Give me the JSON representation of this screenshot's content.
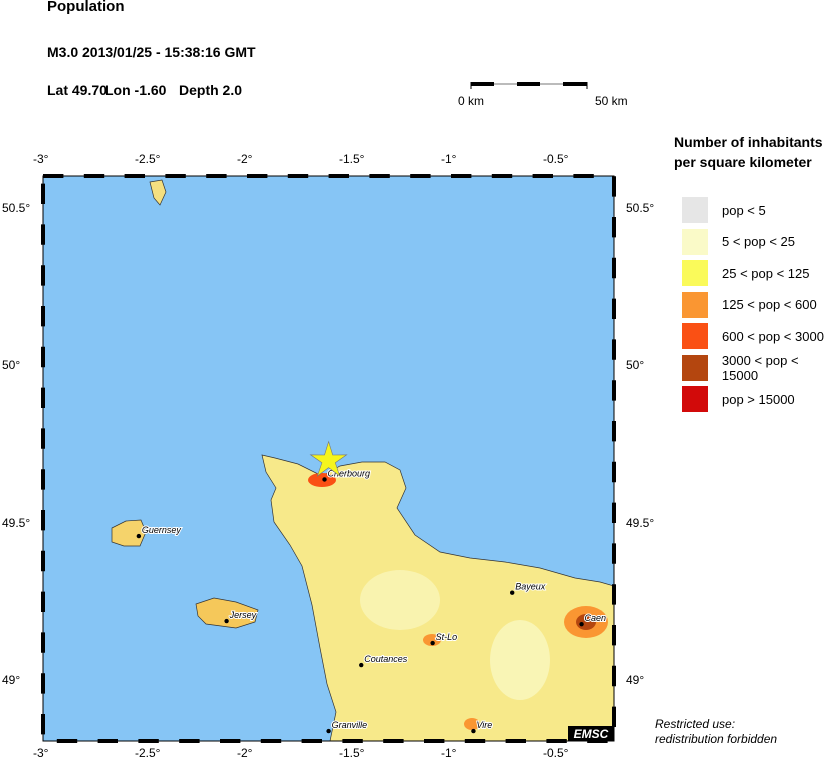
{
  "title": "Population",
  "event": {
    "line1": "M3.0  2013/01/25 - 15:38:16 GMT",
    "lat_label": "Lat 49.70",
    "lon_label": "Lon  -1.60",
    "depth_label": "Depth  2.0"
  },
  "scale_bar": {
    "start": "0 km",
    "end": "50 km"
  },
  "map": {
    "lon_ticks": [
      "-3°",
      "-2.5°",
      "-2°",
      "-1.5°",
      "-1°",
      "-0.5°"
    ],
    "lat_ticks": [
      "50.5°",
      "50°",
      "49.5°",
      "49°"
    ],
    "lon_range": [
      -3,
      -0.2
    ],
    "lat_range": [
      48.81,
      50.6
    ],
    "sea_color": "#86c5f5",
    "epicenter": {
      "lat": 49.7,
      "lon": -1.6,
      "icon": "star-icon",
      "color": "#f5f51e"
    },
    "cities": [
      {
        "name": "Cherbourg",
        "lat": 49.64,
        "lon": -1.62
      },
      {
        "name": "Guernsey",
        "lat": 49.46,
        "lon": -2.53
      },
      {
        "name": "Jersey",
        "lat": 49.19,
        "lon": -2.1
      },
      {
        "name": "St-Lo",
        "lat": 49.12,
        "lon": -1.09
      },
      {
        "name": "Coutances",
        "lat": 49.05,
        "lon": -1.44
      },
      {
        "name": "Bayeux",
        "lat": 49.28,
        "lon": -0.7
      },
      {
        "name": "Caen",
        "lat": 49.18,
        "lon": -0.36
      },
      {
        "name": "Granville",
        "lat": 48.84,
        "lon": -1.6
      },
      {
        "name": "Vire",
        "lat": 48.84,
        "lon": -0.89
      }
    ],
    "logo": "EMSC"
  },
  "legend": {
    "title_line1": "Number of inhabitants",
    "title_line2": "per square kilometer",
    "items": [
      {
        "label": "pop < 5",
        "color": "#e6e6e6"
      },
      {
        "label": "5 < pop < 25",
        "color": "#fafac8"
      },
      {
        "label": "25 < pop < 125",
        "color": "#fafa5a"
      },
      {
        "label": "125 < pop < 600",
        "color": "#fa9632"
      },
      {
        "label": "600 < pop < 3000",
        "color": "#fa5014"
      },
      {
        "label": "3000 < pop < 15000",
        "color": "#b4460f"
      },
      {
        "label": "pop > 15000",
        "color": "#d20a0a"
      }
    ]
  },
  "note": {
    "line1": "Restricted use:",
    "line2": "redistribution forbidden"
  }
}
